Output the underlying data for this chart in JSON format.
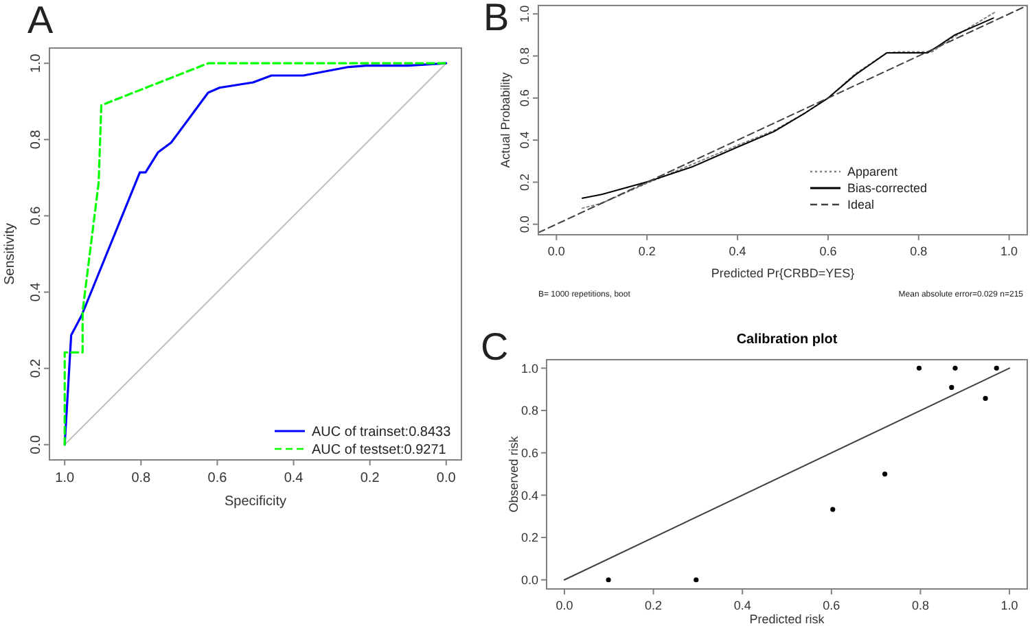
{
  "chart_data": [
    {
      "type": "line",
      "xlabel": "Specificity",
      "ylabel": "Sensitivity",
      "annotations": [
        "A"
      ],
      "xlim": [
        1.04,
        -0.04
      ],
      "ylim": [
        -0.04,
        1.04
      ],
      "xticks": [
        {
          "value": 1,
          "label": "1.0"
        },
        {
          "value": 0.8,
          "label": "0.8"
        },
        {
          "value": 0.6,
          "label": "0.6"
        },
        {
          "value": 0.4,
          "label": "0.4"
        },
        {
          "value": 0.2,
          "label": "0.2"
        },
        {
          "value": 0,
          "label": "0.0"
        }
      ],
      "yticks": [
        {
          "value": 0,
          "label": "0.0"
        },
        {
          "value": 0.2,
          "label": "0.2"
        },
        {
          "value": 0.4,
          "label": "0.4"
        },
        {
          "value": 0.6,
          "label": "0.6"
        },
        {
          "value": 0.8,
          "label": "0.8"
        },
        {
          "value": 1,
          "label": "1.0"
        }
      ],
      "grid": false,
      "legend": "bottom right",
      "series": [
        {
          "color": "#bebebe",
          "line_style": "solid",
          "x": [
            1,
            0
          ],
          "values": [
            0,
            1
          ]
        },
        {
          "name": "AUC of trainset:0.8433",
          "color": "#0000ff",
          "line_style": "solid",
          "x": [
            1,
            0.983,
            0.956,
            0.803,
            0.788,
            0.755,
            0.721,
            0.624,
            0.594,
            0.506,
            0.458,
            0.374,
            0.258,
            0.21,
            0.1,
            0
          ],
          "values": [
            0,
            0.287,
            0.338,
            0.714,
            0.714,
            0.767,
            0.792,
            0.923,
            0.936,
            0.95,
            0.968,
            0.968,
            0.99,
            0.994,
            0.994,
            1
          ]
        },
        {
          "name": "AUC of testset:0.9271",
          "color": "#00ff00",
          "line_style": "dashed",
          "x": [
            1,
            1,
            0.953,
            0.953,
            0.911,
            0.904,
            0.624,
            0
          ],
          "values": [
            0,
            0.242,
            0.242,
            0.35,
            0.687,
            0.89,
            1,
            1
          ]
        }
      ]
    },
    {
      "type": "line",
      "xlabel": "Predicted Pr{CRBD=YES}",
      "ylabel": "Actual Probability",
      "annotations": [
        "B",
        "B= 1000 repetitions, boot",
        "Mean absolute error=0.029 n=215"
      ],
      "xlim": [
        -0.04,
        1.04
      ],
      "ylim": [
        -0.05,
        1.04
      ],
      "xticks": [
        {
          "value": 0,
          "label": "0.0"
        },
        {
          "value": 0.2,
          "label": "0.2"
        },
        {
          "value": 0.4,
          "label": "0.4"
        },
        {
          "value": 0.6,
          "label": "0.6"
        },
        {
          "value": 0.8,
          "label": "0.8"
        },
        {
          "value": 1,
          "label": "1.0"
        }
      ],
      "yticks": [
        {
          "value": 0,
          "label": "0.0"
        },
        {
          "value": 0.2,
          "label": "0.2"
        },
        {
          "value": 0.4,
          "label": "0.4"
        },
        {
          "value": 0.6,
          "label": "0.6"
        },
        {
          "value": 0.8,
          "label": "0.8"
        },
        {
          "value": 1,
          "label": "1.0"
        }
      ],
      "grid": false,
      "legend": "right",
      "series": [
        {
          "name": "Apparent",
          "color": "#808080",
          "line_style": "dotted",
          "x": [
            0.057,
            0.1,
            0.2,
            0.3,
            0.4,
            0.48,
            0.55,
            0.6,
            0.66,
            0.73,
            0.76,
            0.83,
            0.87,
            0.97
          ],
          "values": [
            0.076,
            0.1,
            0.195,
            0.285,
            0.375,
            0.445,
            0.53,
            0.6,
            0.715,
            0.815,
            0.82,
            0.82,
            0.88,
            1.01
          ]
        },
        {
          "name": "Bias-corrected",
          "color": "#000000",
          "line_style": "solid",
          "x": [
            0.057,
            0.1,
            0.2,
            0.3,
            0.4,
            0.48,
            0.55,
            0.6,
            0.66,
            0.73,
            0.82,
            0.845,
            0.88,
            0.965
          ],
          "values": [
            0.124,
            0.142,
            0.201,
            0.273,
            0.367,
            0.44,
            0.53,
            0.6,
            0.71,
            0.815,
            0.815,
            0.85,
            0.9,
            0.98
          ]
        },
        {
          "name": "Ideal",
          "color": "#404040",
          "line_style": "dashed",
          "x": [
            -0.04,
            1.04
          ],
          "values": [
            -0.04,
            1.04
          ]
        }
      ]
    },
    {
      "type": "scatter",
      "title": "Calibration plot",
      "xlabel": "Predicted risk",
      "ylabel": "Observed risk",
      "annotations": [
        "C"
      ],
      "xlim": [
        -0.04,
        1.04
      ],
      "ylim": [
        -0.043,
        1.04
      ],
      "xticks": [
        {
          "value": 0,
          "label": "0.0"
        },
        {
          "value": 0.2,
          "label": "0.2"
        },
        {
          "value": 0.4,
          "label": "0.4"
        },
        {
          "value": 0.6,
          "label": "0.6"
        },
        {
          "value": 0.8,
          "label": "0.8"
        },
        {
          "value": 1,
          "label": "1.0"
        }
      ],
      "yticks": [
        {
          "value": 0,
          "label": "0.0"
        },
        {
          "value": 0.2,
          "label": "0.2"
        },
        {
          "value": 0.4,
          "label": "0.4"
        },
        {
          "value": 0.6,
          "label": "0.6"
        },
        {
          "value": 0.8,
          "label": "0.8"
        },
        {
          "value": 1,
          "label": "1.0"
        }
      ],
      "grid": false,
      "series": [
        {
          "type": "line",
          "color": "#404040",
          "line_style": "solid",
          "x": [
            0,
            1
          ],
          "values": [
            0,
            1
          ]
        },
        {
          "color": "#000000",
          "marker": "circle",
          "x": [
            0.099,
            0.296,
            0.603,
            0.72,
            0.797,
            0.87,
            0.878,
            0.946,
            0.971
          ],
          "values": [
            0,
            0,
            0.333,
            0.5,
            1,
            0.909,
            1,
            0.857,
            1
          ]
        }
      ]
    }
  ]
}
